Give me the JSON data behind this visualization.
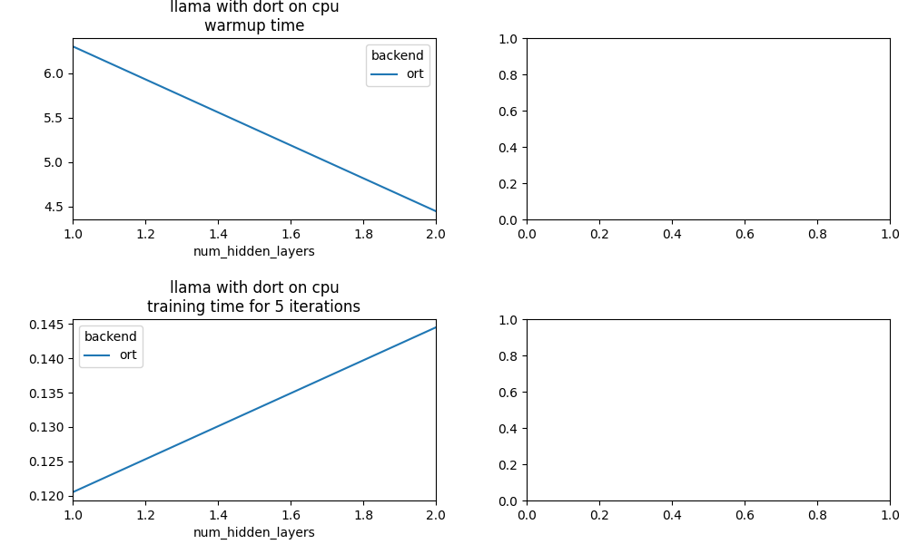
{
  "warmup": {
    "title": "llama with dort on cpu\nwarmup time",
    "x": [
      1.0,
      2.0
    ],
    "y": [
      6.3,
      4.45
    ],
    "xlabel": "num_hidden_layers",
    "xlim": [
      1.0,
      2.0
    ],
    "line_color": "#1f77b4",
    "legend_title": "backend",
    "legend_label": "ort",
    "legend_loc": "upper right"
  },
  "training": {
    "title": "llama with dort on cpu\ntraining time for 5 iterations",
    "x": [
      1.0,
      2.0
    ],
    "y": [
      0.1205,
      0.1445
    ],
    "xlabel": "num_hidden_layers",
    "xlim": [
      1.0,
      2.0
    ],
    "line_color": "#1f77b4",
    "legend_title": "backend",
    "legend_label": "ort",
    "legend_loc": "upper left"
  },
  "empty_xlim": [
    0.0,
    1.0
  ],
  "empty_ylim": [
    0.0,
    1.0
  ],
  "figsize": [
    10.0,
    6.0
  ],
  "dpi": 100
}
